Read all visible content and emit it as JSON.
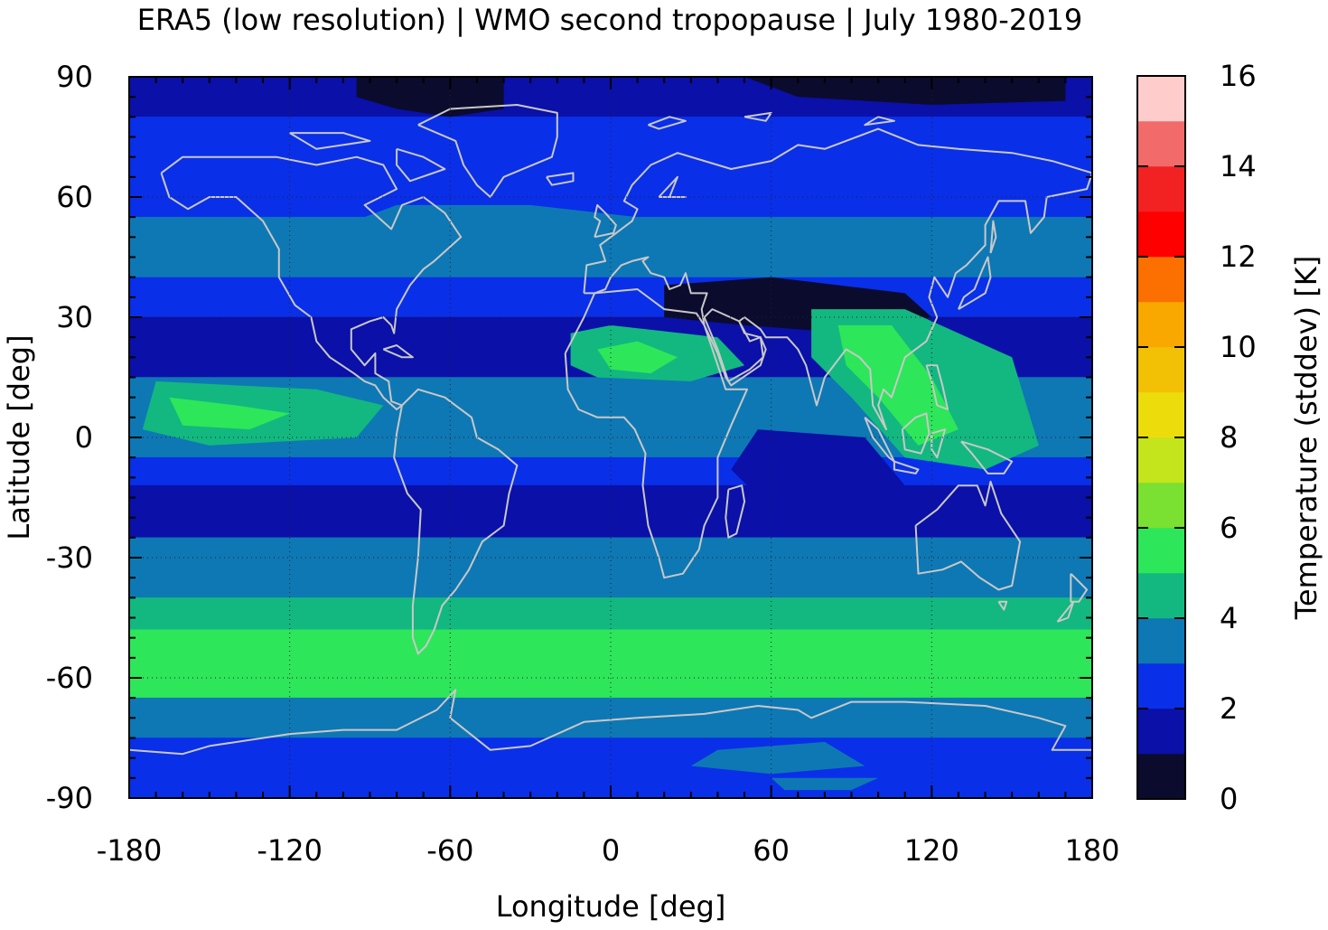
{
  "chart_data": {
    "type": "heatmap",
    "title": "ERA5 (low resolution) | WMO second tropopause | July 1980-2019",
    "xlabel": "Longitude [deg]",
    "ylabel": "Latitude [deg]",
    "xlim": [
      -180,
      180
    ],
    "ylim": [
      -90,
      90
    ],
    "x_ticks": [
      "-180",
      "-120",
      "-60",
      "0",
      "60",
      "120",
      "180"
    ],
    "y_ticks": [
      "90",
      "60",
      "30",
      "0",
      "-30",
      "-60",
      "-90"
    ],
    "grid": true,
    "colorbar": {
      "label": "Temperature (stddev) [K]",
      "range": [
        0,
        16
      ],
      "ticks": [
        "16",
        "14",
        "12",
        "10",
        "8",
        "6",
        "4",
        "2",
        "0"
      ],
      "colors": [
        "#0b0b2e",
        "#0a10a8",
        "#0a2fe8",
        "#0e78b4",
        "#12b880",
        "#2ee65a",
        "#7ae032",
        "#c4e41c",
        "#ecdc0c",
        "#f2c004",
        "#f9a800",
        "#fb7000",
        "#ff0000",
        "#f22222",
        "#f26a6a",
        "#ffcccc"
      ]
    },
    "zonal_bands": [
      {
        "lat_range": [
          80,
          90
        ],
        "value": 1.2
      },
      {
        "lat_range": [
          70,
          80
        ],
        "value": 2.2
      },
      {
        "lat_range": [
          55,
          70
        ],
        "value": 2.6
      },
      {
        "lat_range": [
          40,
          55
        ],
        "value": 3.4
      },
      {
        "lat_range": [
          30,
          40
        ],
        "value": 2.6
      },
      {
        "lat_range": [
          15,
          30
        ],
        "value": 1.8
      },
      {
        "lat_range": [
          -5,
          15
        ],
        "value": 3.6
      },
      {
        "lat_range": [
          -12,
          -5
        ],
        "value": 2.5
      },
      {
        "lat_range": [
          -25,
          -12
        ],
        "value": 1.7
      },
      {
        "lat_range": [
          -40,
          -25
        ],
        "value": 3.4
      },
      {
        "lat_range": [
          -48,
          -40
        ],
        "value": 4.4
      },
      {
        "lat_range": [
          -65,
          -48
        ],
        "value": 5.4
      },
      {
        "lat_range": [
          -75,
          -65
        ],
        "value": 3.6
      },
      {
        "lat_range": [
          -90,
          -75
        ],
        "value": 2.5
      }
    ]
  }
}
